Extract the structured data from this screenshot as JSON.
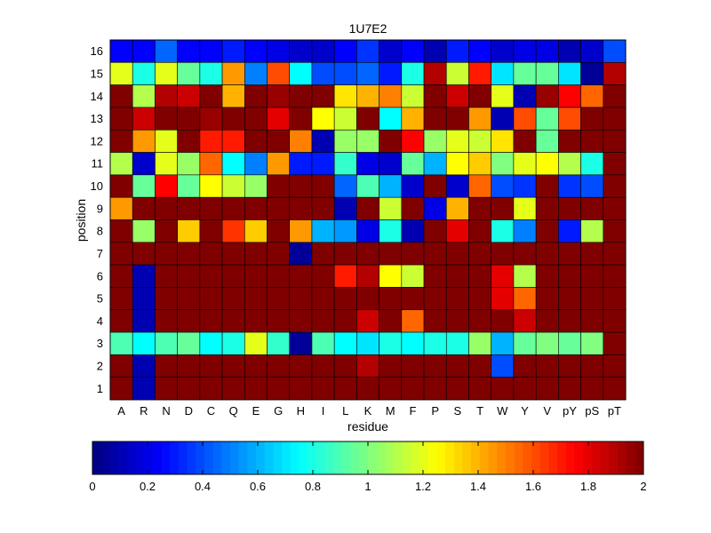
{
  "chart_data": {
    "type": "heatmap",
    "title": "1U7E2",
    "xlabel": "residue",
    "ylabel": "position",
    "x_categories": [
      "A",
      "R",
      "N",
      "D",
      "C",
      "Q",
      "E",
      "G",
      "H",
      "I",
      "L",
      "K",
      "M",
      "F",
      "P",
      "S",
      "T",
      "W",
      "Y",
      "V",
      "pY",
      "pS",
      "pT"
    ],
    "y_categories": [
      "16",
      "15",
      "14",
      "13",
      "12",
      "11",
      "10",
      "9",
      "8",
      "7",
      "6",
      "5",
      "4",
      "3",
      "2",
      "1"
    ],
    "values": [
      [
        0.25,
        0.25,
        0.45,
        0.25,
        0.25,
        0.3,
        0.25,
        0.2,
        0.15,
        0.15,
        0.25,
        0.35,
        0.15,
        0.25,
        0.1,
        0.3,
        0.25,
        0.15,
        0.2,
        0.2,
        0.1,
        0.15,
        0.4
      ],
      [
        1.2,
        0.8,
        1.2,
        0.95,
        0.8,
        1.45,
        0.5,
        1.6,
        0.75,
        0.4,
        0.4,
        0.45,
        0.3,
        0.8,
        1.9,
        1.15,
        1.7,
        0.7,
        0.95,
        0.95,
        0.7,
        0.05,
        1.9
      ],
      [
        2,
        1.1,
        1.9,
        1.85,
        2,
        1.4,
        2,
        1.95,
        2,
        2,
        1.3,
        1.4,
        1.5,
        1.15,
        2,
        1.85,
        2,
        1.2,
        0.1,
        1.95,
        1.75,
        1.55,
        2
      ],
      [
        2,
        1.85,
        2,
        2,
        1.95,
        2,
        2,
        1.8,
        2,
        1.25,
        1.15,
        2,
        0.75,
        1.4,
        2,
        2,
        1.45,
        0.1,
        1.6,
        0.95,
        1.6,
        2,
        2
      ],
      [
        2,
        1.45,
        1.2,
        2,
        1.7,
        1.7,
        2,
        2,
        1.5,
        0.1,
        1.05,
        1.05,
        2,
        1.75,
        1.05,
        1.2,
        1.15,
        1.3,
        2,
        0.95,
        2,
        2,
        2
      ],
      [
        1.1,
        0.15,
        1.2,
        1.05,
        1.55,
        0.75,
        0.5,
        1.45,
        0.3,
        0.3,
        0.85,
        0.2,
        0.15,
        0.95,
        0.6,
        1.25,
        1.35,
        1,
        1.2,
        1.25,
        1.1,
        0.8,
        2
      ],
      [
        2,
        0.95,
        1.75,
        0.95,
        1.25,
        1.15,
        1.05,
        2,
        2,
        2,
        0.45,
        0.9,
        0.6,
        0.15,
        2,
        0.15,
        1.55,
        0.4,
        0.35,
        2,
        0.35,
        0.4,
        2
      ],
      [
        1.45,
        2,
        2,
        2,
        2,
        2,
        2,
        2,
        2,
        2,
        0.1,
        2,
        1.15,
        2,
        0.2,
        1.4,
        2,
        2,
        1.2,
        2,
        2,
        2,
        2
      ],
      [
        2,
        1.05,
        2,
        1.35,
        2,
        1.65,
        1.35,
        2,
        1.45,
        0.6,
        0.55,
        0.2,
        0.8,
        0.1,
        2,
        1.8,
        2,
        0.8,
        0.5,
        2,
        0.3,
        1.1,
        2
      ],
      [
        2,
        2,
        2,
        2,
        2,
        2,
        2,
        2,
        0.05,
        2,
        2,
        2,
        2,
        2,
        2,
        2,
        2,
        2,
        2,
        2,
        2,
        2,
        2
      ],
      [
        2,
        0.1,
        2,
        2,
        2,
        2,
        2,
        2,
        2,
        2,
        1.7,
        1.9,
        1.25,
        1.15,
        2,
        2,
        2,
        1.8,
        1.1,
        2,
        2,
        2,
        2
      ],
      [
        2,
        0.1,
        2,
        2,
        2,
        2,
        2,
        2,
        2,
        2,
        2,
        2,
        2,
        2,
        2,
        2,
        2,
        1.8,
        1.55,
        2,
        2,
        2,
        2
      ],
      [
        2,
        0.1,
        2,
        2,
        2,
        2,
        2,
        2,
        2,
        2,
        2,
        1.85,
        2,
        1.55,
        2,
        2,
        2,
        2,
        1.85,
        2,
        2,
        2,
        2
      ],
      [
        0.9,
        0.75,
        0.9,
        0.95,
        0.75,
        0.8,
        1.2,
        0.85,
        0.05,
        0.9,
        0.75,
        0.7,
        0.8,
        0.75,
        0.8,
        0.8,
        1.05,
        0.6,
        0.95,
        1,
        0.95,
        1,
        2
      ],
      [
        2,
        0.1,
        2,
        2,
        2,
        2,
        2,
        2,
        2,
        2,
        2,
        1.9,
        2,
        2,
        2,
        2,
        2,
        0.4,
        2,
        2,
        2,
        2,
        2
      ],
      [
        2,
        0.1,
        2,
        2,
        2,
        2,
        2,
        2,
        2,
        2,
        2,
        2,
        2,
        2,
        2,
        2,
        2,
        2,
        2,
        2,
        2,
        2,
        2
      ]
    ],
    "colorbar": {
      "min": 0,
      "max": 2,
      "ticks": [
        "0",
        "0.2",
        "0.4",
        "0.6",
        "0.8",
        "1",
        "1.2",
        "1.4",
        "1.6",
        "1.8",
        "2"
      ],
      "colormap": "jet",
      "orientation": "horizontal",
      "placement": "bottom"
    },
    "grid": true
  }
}
